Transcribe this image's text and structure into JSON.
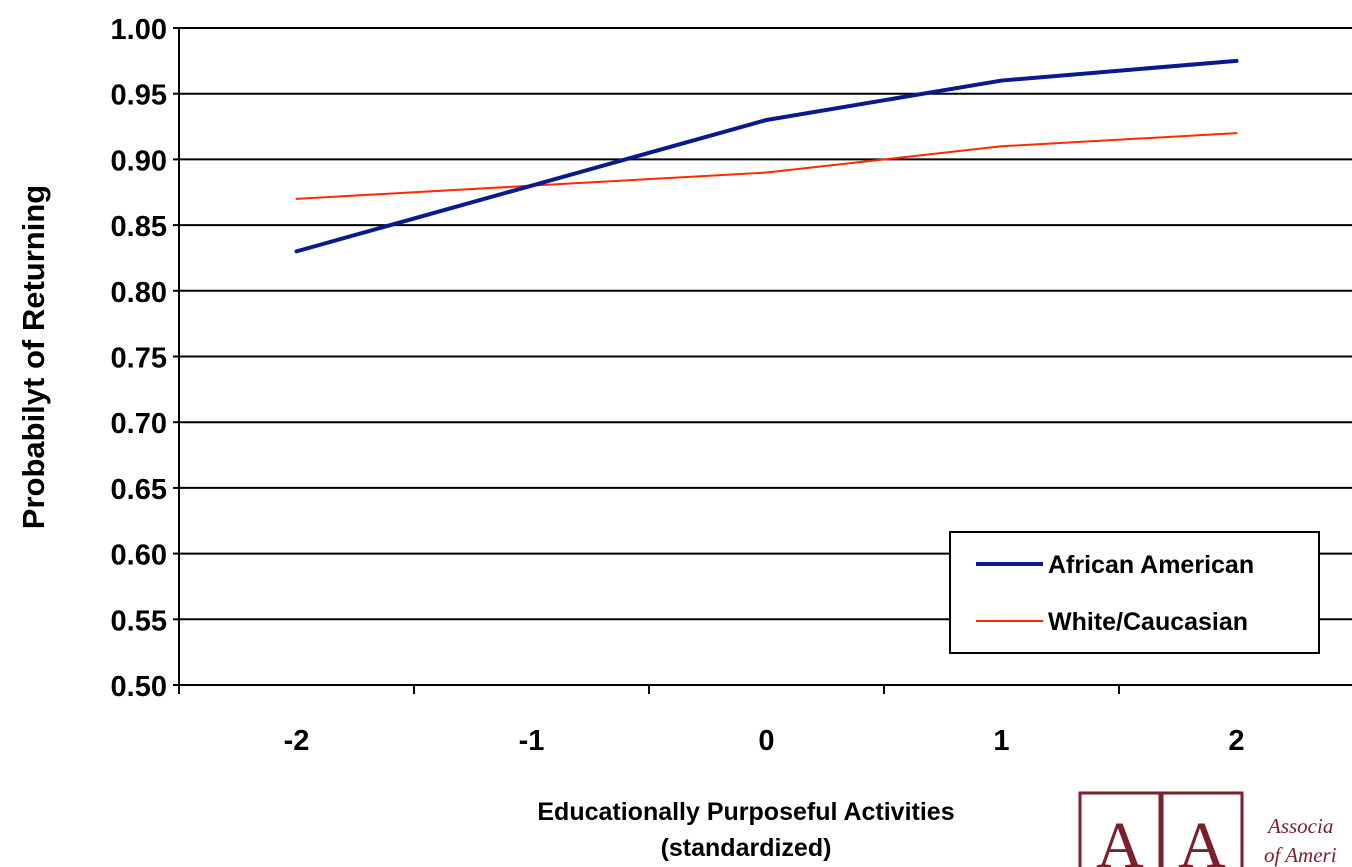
{
  "chart_data": {
    "type": "line",
    "x": [
      "-2",
      "-1",
      "0",
      "1",
      "2"
    ],
    "series": [
      {
        "name": "African American",
        "values": [
          0.83,
          0.88,
          0.93,
          0.96,
          0.975
        ],
        "color": "#0a1a8c"
      },
      {
        "name": "White/Caucasian",
        "values": [
          0.87,
          0.88,
          0.89,
          0.91,
          0.92
        ],
        "color": "#ff2a00"
      }
    ],
    "ylabel": "Probabilyt of Returning",
    "xlabel": [
      "Educationally Purposeful Activities",
      "(standardized)"
    ],
    "ylim": [
      0.5,
      1.0
    ],
    "yticks": [
      "0.50",
      "0.55",
      "0.60",
      "0.65",
      "0.70",
      "0.75",
      "0.80",
      "0.85",
      "0.90",
      "0.95",
      "1.00"
    ],
    "grid": "horizontal",
    "legend_position": "bottom-right"
  },
  "logo": {
    "letters": [
      "A",
      "A"
    ],
    "text_lines": [
      "Associa",
      "of Ameri"
    ]
  }
}
